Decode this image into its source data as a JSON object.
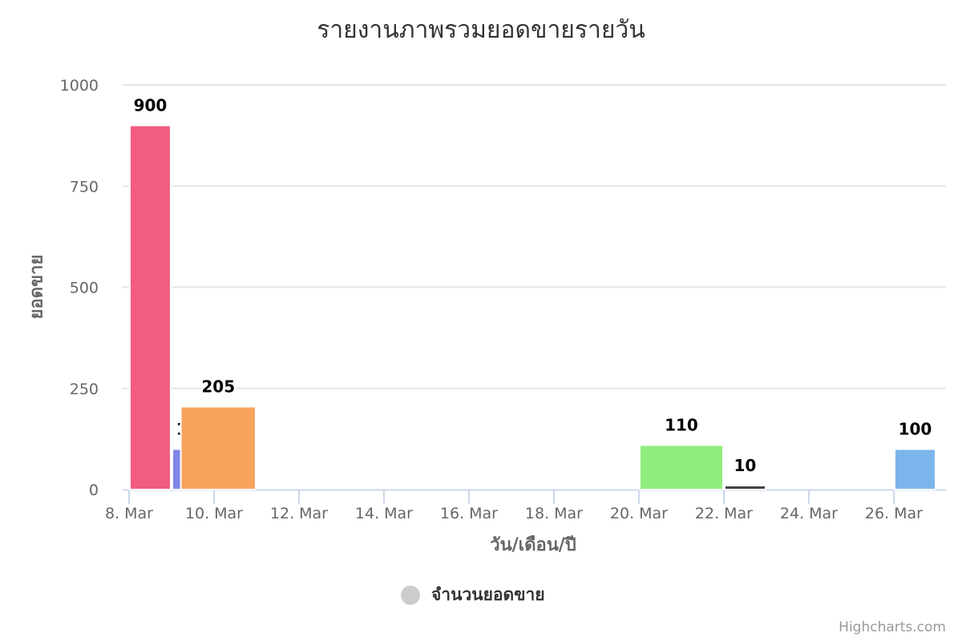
{
  "chart_data": {
    "type": "bar",
    "title": "รายงานภาพรวมยอดขายรายวัน",
    "xlabel": "วัน/เดือน/ปี",
    "ylabel": "ยอดขาย",
    "ylim": [
      0,
      1000
    ],
    "yticks": [
      "0",
      "250",
      "500",
      "750",
      "1000"
    ],
    "xticks": [
      "8. Mar",
      "10. Mar",
      "12. Mar",
      "14. Mar",
      "16. Mar",
      "18. Mar",
      "20. Mar",
      "22. Mar",
      "24. Mar",
      "26. Mar"
    ],
    "grid": true,
    "legend_position": "bottom-center",
    "series": [
      {
        "name": "จำนวนยอดขาย",
        "points": [
          {
            "start": "2018-03-08",
            "end": "2018-03-09",
            "value": 900,
            "color": "#f15c80",
            "label": "900"
          },
          {
            "start": "2018-03-09",
            "end": "2018-03-10",
            "value": 100,
            "color": "#8085e9",
            "label": "100"
          },
          {
            "start": "2018-03-09.2",
            "end": "2018-03-11",
            "value": 205,
            "color": "#f7a35c",
            "label": "205"
          },
          {
            "start": "2018-03-20",
            "end": "2018-03-22",
            "value": 110,
            "color": "#90ed7d",
            "label": "110"
          },
          {
            "start": "2018-03-22",
            "end": "2018-03-23",
            "value": 10,
            "color": "#434348",
            "label": "10"
          },
          {
            "start": "2018-03-26",
            "end": "2018-03-27",
            "value": 100,
            "color": "#7cb5ec",
            "label": "100"
          }
        ]
      }
    ]
  },
  "legend": {
    "label": "จำนวนยอดขาย",
    "color": "#cccccc"
  },
  "credits": "Highcharts.com"
}
